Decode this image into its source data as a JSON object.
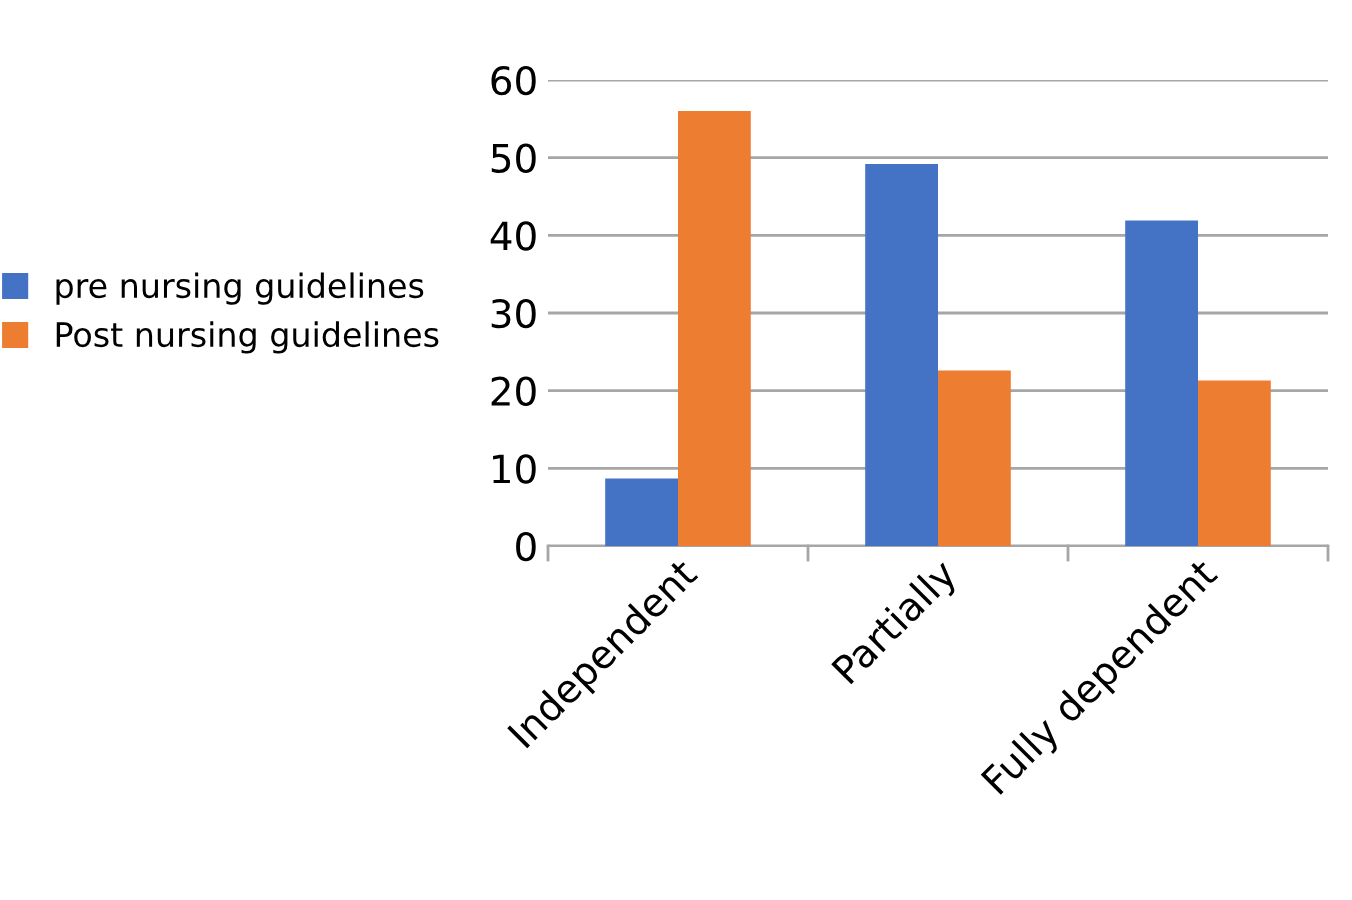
{
  "chart_data": {
    "type": "bar",
    "categories": [
      "Independent",
      "Partially",
      "Fully dependent"
    ],
    "series": [
      {
        "name": "pre nursing guidelines",
        "color": "#4472c4",
        "values": [
          8.7,
          49.2,
          41.9
        ]
      },
      {
        "name": "Post nursing guidelines",
        "color": "#ed7d31",
        "values": [
          56.0,
          22.6,
          21.3
        ]
      }
    ],
    "ylim": [
      0,
      60
    ],
    "yticks": [
      0,
      10,
      20,
      30,
      40,
      50,
      60
    ],
    "grid": "y",
    "legend": "left"
  }
}
